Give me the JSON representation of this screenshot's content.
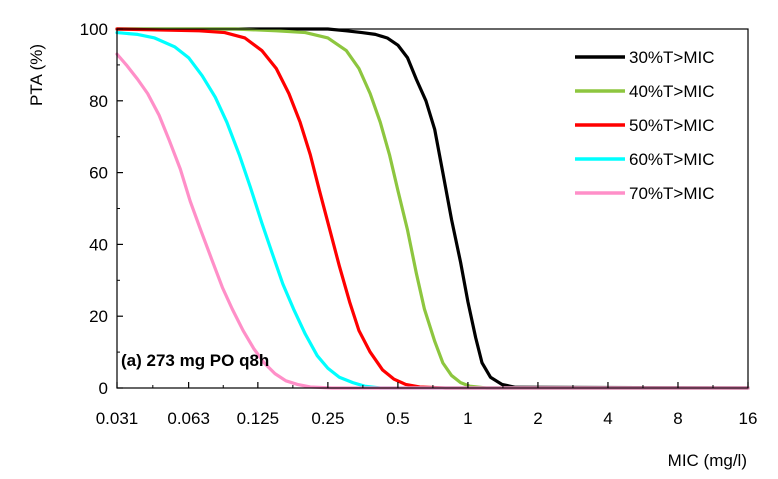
{
  "chart_data": {
    "type": "line",
    "title": "",
    "xlabel": "MIC (mg/l)",
    "ylabel": "PTA (%)",
    "x_scale": "log2",
    "x": [
      0.031,
      0.063,
      0.125,
      0.25,
      0.5,
      1,
      2,
      4,
      8,
      16
    ],
    "xticks": [
      "0.031",
      "0.063",
      "0.125",
      "0.25",
      "0.5",
      "1",
      "2",
      "4",
      "8",
      "16"
    ],
    "xlim": [
      0.031,
      16
    ],
    "ylim": [
      0,
      100
    ],
    "yticks": [
      "0",
      "20",
      "40",
      "60",
      "80",
      "100"
    ],
    "annotation": "(a) 273 mg PO q8h",
    "legend_position": "top-right",
    "series": [
      {
        "name": "30%T>MIC",
        "color": "#000000",
        "points": [
          [
            0.031,
            100
          ],
          [
            0.1,
            100
          ],
          [
            0.25,
            100
          ],
          [
            0.3,
            99.5
          ],
          [
            0.35,
            99
          ],
          [
            0.4,
            98.5
          ],
          [
            0.45,
            97.5
          ],
          [
            0.5,
            95.5
          ],
          [
            0.55,
            92
          ],
          [
            0.6,
            86
          ],
          [
            0.66,
            80
          ],
          [
            0.72,
            72
          ],
          [
            0.78,
            60
          ],
          [
            0.85,
            47
          ],
          [
            0.93,
            35
          ],
          [
            1.0,
            24
          ],
          [
            1.08,
            14
          ],
          [
            1.15,
            7
          ],
          [
            1.25,
            3
          ],
          [
            1.4,
            1
          ],
          [
            1.6,
            0.2
          ],
          [
            16,
            0
          ]
        ]
      },
      {
        "name": "40%T>MIC",
        "color": "#8dc63f",
        "points": [
          [
            0.031,
            100
          ],
          [
            0.1,
            100
          ],
          [
            0.15,
            99.5
          ],
          [
            0.2,
            99
          ],
          [
            0.25,
            97.5
          ],
          [
            0.3,
            94
          ],
          [
            0.34,
            89
          ],
          [
            0.38,
            82
          ],
          [
            0.42,
            74
          ],
          [
            0.46,
            65
          ],
          [
            0.5,
            55
          ],
          [
            0.55,
            44
          ],
          [
            0.6,
            32
          ],
          [
            0.65,
            22
          ],
          [
            0.72,
            13
          ],
          [
            0.78,
            7
          ],
          [
            0.85,
            3.5
          ],
          [
            0.93,
            1.5
          ],
          [
            1.02,
            0.5
          ],
          [
            1.2,
            0
          ],
          [
            16,
            0
          ]
        ]
      },
      {
        "name": "50%T>MIC",
        "color": "#ff0000",
        "points": [
          [
            0.031,
            100
          ],
          [
            0.07,
            99.5
          ],
          [
            0.09,
            99
          ],
          [
            0.11,
            97.5
          ],
          [
            0.13,
            94
          ],
          [
            0.15,
            89
          ],
          [
            0.17,
            82
          ],
          [
            0.19,
            74
          ],
          [
            0.21,
            65
          ],
          [
            0.23,
            55
          ],
          [
            0.255,
            44
          ],
          [
            0.28,
            34
          ],
          [
            0.31,
            24
          ],
          [
            0.34,
            16
          ],
          [
            0.38,
            10
          ],
          [
            0.43,
            5
          ],
          [
            0.48,
            2.5
          ],
          [
            0.54,
            1
          ],
          [
            0.62,
            0.3
          ],
          [
            0.8,
            0
          ],
          [
            16,
            0
          ]
        ]
      },
      {
        "name": "60%T>MIC",
        "color": "#00ffff",
        "points": [
          [
            0.031,
            99
          ],
          [
            0.038,
            98.5
          ],
          [
            0.045,
            97.5
          ],
          [
            0.055,
            95
          ],
          [
            0.063,
            92
          ],
          [
            0.072,
            87
          ],
          [
            0.082,
            81
          ],
          [
            0.092,
            74
          ],
          [
            0.104,
            65
          ],
          [
            0.116,
            56
          ],
          [
            0.13,
            46
          ],
          [
            0.145,
            37
          ],
          [
            0.16,
            29
          ],
          [
            0.178,
            22
          ],
          [
            0.2,
            15
          ],
          [
            0.225,
            9
          ],
          [
            0.25,
            5.5
          ],
          [
            0.28,
            3
          ],
          [
            0.32,
            1.5
          ],
          [
            0.36,
            0.5
          ],
          [
            0.42,
            0
          ],
          [
            16,
            0
          ]
        ]
      },
      {
        "name": "70%T>MIC",
        "color": "#ff8fc8",
        "points": [
          [
            0.031,
            93
          ],
          [
            0.034,
            90
          ],
          [
            0.038,
            86
          ],
          [
            0.042,
            82
          ],
          [
            0.047,
            76
          ],
          [
            0.052,
            69
          ],
          [
            0.058,
            61
          ],
          [
            0.064,
            52
          ],
          [
            0.071,
            44
          ],
          [
            0.079,
            36
          ],
          [
            0.088,
            28
          ],
          [
            0.097,
            22
          ],
          [
            0.108,
            16
          ],
          [
            0.12,
            11
          ],
          [
            0.133,
            7
          ],
          [
            0.148,
            4
          ],
          [
            0.165,
            2
          ],
          [
            0.185,
            1
          ],
          [
            0.21,
            0.3
          ],
          [
            0.26,
            0
          ],
          [
            16,
            0
          ]
        ]
      }
    ]
  }
}
